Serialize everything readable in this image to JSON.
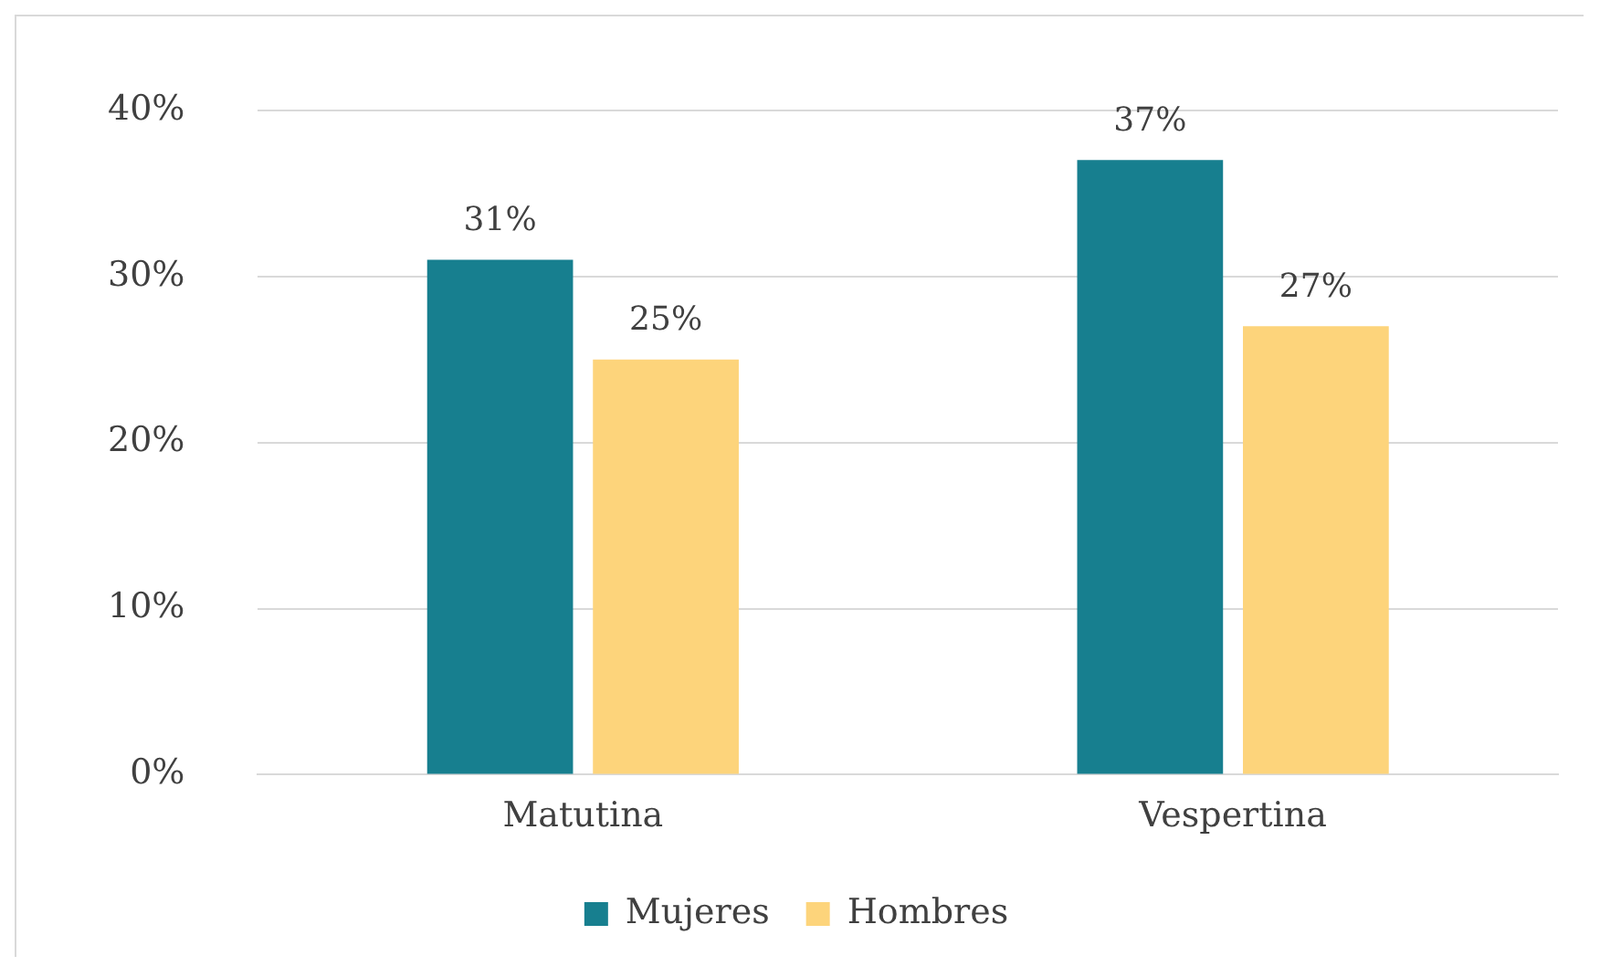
{
  "chart_data": {
    "type": "bar",
    "categories": [
      "Matutina",
      "Vespertina"
    ],
    "series": [
      {
        "name": "Mujeres",
        "color": "#177f8f",
        "values": [
          31,
          37
        ],
        "value_labels": [
          "31%",
          "37%"
        ]
      },
      {
        "name": "Hombres",
        "color": "#fdd47b",
        "values": [
          25,
          27
        ],
        "value_labels": [
          "25%",
          "27%"
        ]
      }
    ],
    "ylim": [
      0,
      40
    ],
    "yticks": [
      {
        "value": 0,
        "label": "0%"
      },
      {
        "value": 10,
        "label": "10%"
      },
      {
        "value": 20,
        "label": "20%"
      },
      {
        "value": 30,
        "label": "30%"
      },
      {
        "value": 40,
        "label": "40%"
      }
    ],
    "grid": "y",
    "legend": "bottom"
  }
}
